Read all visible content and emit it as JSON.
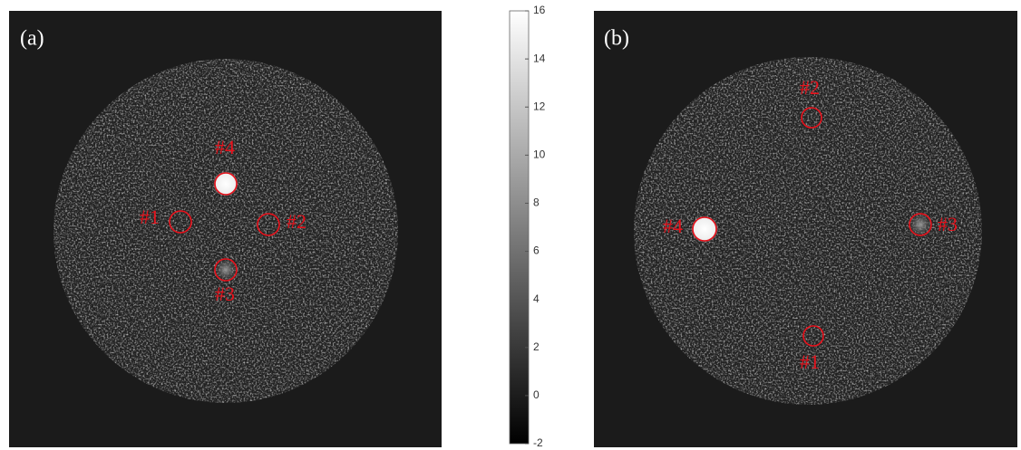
{
  "panels": [
    {
      "label": "(a)",
      "rois": [
        "#4",
        "#1",
        "#2",
        "#3"
      ]
    },
    {
      "label": "(b)",
      "rois": [
        "#2",
        "#4",
        "#3",
        "#1"
      ]
    }
  ],
  "colorbar": {
    "ylim": [
      -2,
      16
    ],
    "yticks": [
      -2,
      0,
      2,
      4,
      6,
      8,
      10,
      12,
      14,
      16
    ]
  }
}
